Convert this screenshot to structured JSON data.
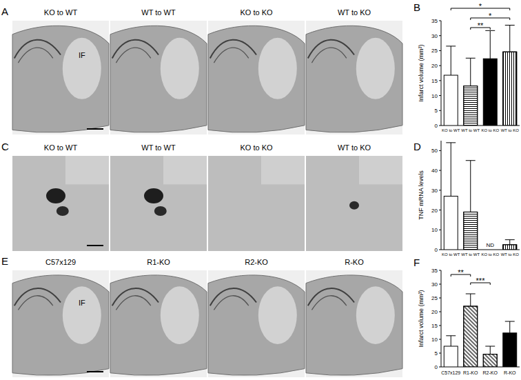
{
  "panels": [
    {
      "panel": "A",
      "images": [
        {
          "label": "KO to WT",
          "annotation": "IF"
        },
        {
          "label": "WT to WT"
        },
        {
          "label": "KO to KO"
        },
        {
          "label": "WT to KO"
        }
      ]
    },
    {
      "panel": "C",
      "images": [
        {
          "label": "KO to WT"
        },
        {
          "label": "WT to WT"
        },
        {
          "label": "KO to KO"
        },
        {
          "label": "WT to KO"
        }
      ]
    },
    {
      "panel": "E",
      "images": [
        {
          "label": "C57x129",
          "annotation": "IF"
        },
        {
          "label": "R1-KO"
        },
        {
          "label": "R2-KO"
        },
        {
          "label": "R-KO"
        }
      ]
    }
  ],
  "chart_data": [
    {
      "type": "bar",
      "panel": "B",
      "y_label": "Infarct volume (mm³)",
      "categories": [
        "KO to WT",
        "WT to WT",
        "KO to KO",
        "WT to KO"
      ],
      "values": [
        16.8,
        13.2,
        22.3,
        24.6
      ],
      "errors": [
        9.7,
        9.3,
        9.4,
        8.9
      ],
      "colors": [
        "#ffffff",
        "#ffffff",
        "#000000",
        "#ffffff"
      ],
      "ylim": [
        0,
        35
      ],
      "yticks": [
        0,
        5,
        10,
        15,
        20,
        25,
        30,
        35
      ],
      "annotations": [
        {
          "text": "*",
          "between": [
            0,
            3
          ]
        },
        {
          "text": "*",
          "between": [
            1,
            3
          ]
        },
        {
          "text": "**",
          "between": [
            1,
            2
          ]
        }
      ]
    },
    {
      "type": "bar",
      "panel": "D",
      "y_label": "TNF mRNA levels",
      "categories": [
        "KO to WT",
        "WT to WT",
        "KO to KO",
        "WT to KO"
      ],
      "values": [
        27,
        19,
        null,
        2.5
      ],
      "errors": [
        27,
        26,
        null,
        2.5
      ],
      "colors": [
        "#ffffff",
        "#ffffff",
        "#000000",
        "#ffffff"
      ],
      "ylim": [
        0,
        55
      ],
      "yticks": [
        0,
        10,
        20,
        30,
        40,
        50
      ],
      "annotations": [
        {
          "text": "ND",
          "category": 2
        }
      ]
    },
    {
      "type": "bar",
      "panel": "F",
      "y_label": "Infarct volume (mm³)",
      "categories": [
        "C57x129",
        "R1-KO",
        "R2-KO",
        "R-KO"
      ],
      "values": [
        7.5,
        22,
        4.6,
        12.3
      ],
      "errors": [
        3.8,
        4.5,
        2.9,
        4.2
      ],
      "colors": [
        "#ffffff",
        "#ffffff",
        "#ffffff",
        "#000000"
      ],
      "ylim": [
        0,
        35
      ],
      "yticks": [
        0,
        5,
        10,
        15,
        20,
        25,
        30,
        35
      ],
      "annotations": [
        {
          "text": "**",
          "between": [
            0,
            1
          ]
        },
        {
          "text": "***",
          "between": [
            1,
            2
          ]
        }
      ]
    }
  ]
}
